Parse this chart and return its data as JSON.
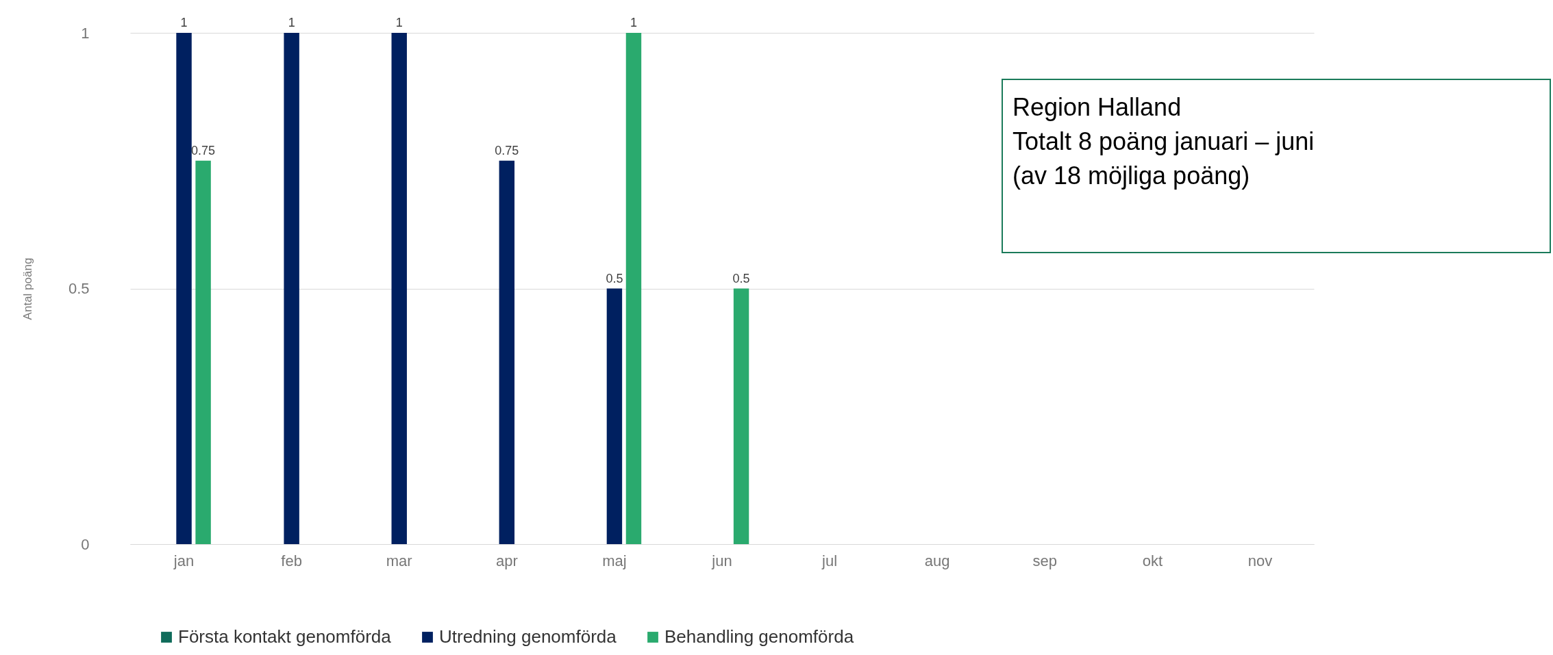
{
  "chart_data": {
    "type": "bar",
    "ylabel": "Antal poäng",
    "categories": [
      "jan",
      "feb",
      "mar",
      "apr",
      "maj",
      "jun",
      "jul",
      "aug",
      "sep",
      "okt",
      "nov"
    ],
    "series": [
      {
        "name": "Första kontakt genomförda",
        "color": "#0f6b5a",
        "values": [
          null,
          null,
          null,
          null,
          null,
          null,
          null,
          null,
          null,
          null,
          null
        ]
      },
      {
        "name": "Utredning genomförda",
        "color": "#002060",
        "values": [
          1,
          1,
          1,
          0.75,
          0.5,
          null,
          null,
          null,
          null,
          null,
          null
        ]
      },
      {
        "name": "Behandling genomförda",
        "color": "#2aaa6e",
        "values": [
          0.75,
          null,
          null,
          null,
          1,
          0.5,
          null,
          null,
          null,
          null,
          null
        ]
      }
    ],
    "data_labels": true,
    "ylim": [
      0,
      1
    ],
    "yticks": [
      0,
      0.5,
      1
    ],
    "grid": "y",
    "legend": "bottom",
    "annotations": [
      "Region Halland",
      "Totalt 8 poäng januari – juni",
      "(av 18 möjliga poäng)"
    ]
  }
}
